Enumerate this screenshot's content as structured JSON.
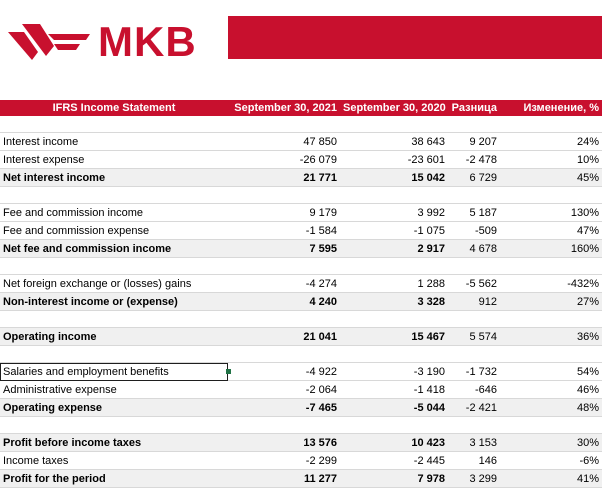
{
  "brand": {
    "name": "MKB",
    "color": "#c8102e"
  },
  "header": {
    "label": "IFRS Income Statement",
    "col1": "September 30, 2021",
    "col2": "September 30, 2020",
    "col3": "Разница",
    "col4": "Изменение, %"
  },
  "rows": {
    "interest_income": [
      "Interest income",
      "47 850",
      "38 643",
      "9 207",
      "24%"
    ],
    "interest_expense": [
      "Interest expense",
      "-26 079",
      "-23 601",
      "-2 478",
      "10%"
    ],
    "net_interest_income": [
      "Net interest income",
      "21 771",
      "15 042",
      "6 729",
      "45%"
    ],
    "fee_income": [
      "Fee and commission income",
      "9 179",
      "3 992",
      "5 187",
      "130%"
    ],
    "fee_expense": [
      "Fee and commission expense",
      "-1 584",
      "-1 075",
      "-509",
      "47%"
    ],
    "net_fee_income": [
      "Net fee and commission income",
      "7 595",
      "2 917",
      "4 678",
      "160%"
    ],
    "fx_gains": [
      "Net foreign exchange or (losses) gains",
      "-4 274",
      "1 288",
      "-5 562",
      "-432%"
    ],
    "non_interest_income": [
      "Non-interest income or (expense)",
      "4 240",
      "3 328",
      "912",
      "27%"
    ],
    "operating_income": [
      "Operating income",
      "21 041",
      "15 467",
      "5 574",
      "36%"
    ],
    "salaries": [
      "Salaries and employment benefits",
      "-4 922",
      "-3 190",
      "-1 732",
      "54%"
    ],
    "admin_expense": [
      "Administrative expense",
      "-2 064",
      "-1 418",
      "-646",
      "46%"
    ],
    "operating_expense": [
      "Operating expense",
      "-7 465",
      "-5 044",
      "-2 421",
      "48%"
    ],
    "profit_before_tax": [
      "Profit before income taxes",
      "13 576",
      "10 423",
      "3 153",
      "30%"
    ],
    "income_taxes": [
      "Income taxes",
      "-2 299",
      "-2 445",
      "146",
      "-6%"
    ],
    "profit_period": [
      "Profit for the period",
      "11 277",
      "7 978",
      "3 299",
      "41%"
    ]
  }
}
